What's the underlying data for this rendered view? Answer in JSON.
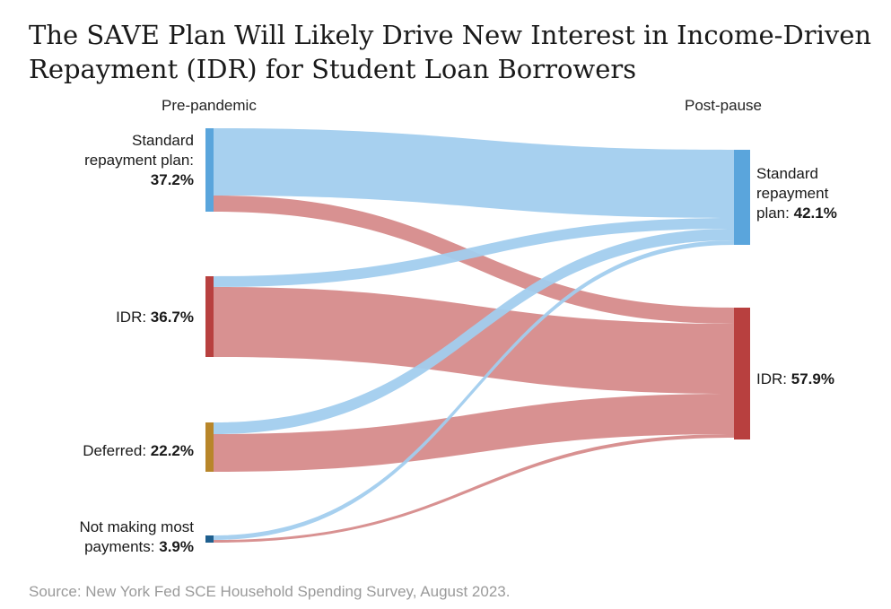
{
  "title": "The SAVE Plan Will Likely Drive New Interest in Income-Driven Repayment (IDR) for Student Loan Borrowers",
  "columns": {
    "left": "Pre-pandemic",
    "right": "Post-pause"
  },
  "left_nodes": [
    {
      "id": "standard",
      "label_lines": [
        "Standard",
        "repayment plan:"
      ],
      "pct": "37.2%",
      "value": 37.2,
      "color": "#5aa5dc"
    },
    {
      "id": "idr",
      "label_lines": [
        "IDR:"
      ],
      "pct": "36.7%",
      "value": 36.7,
      "color": "#b8403f"
    },
    {
      "id": "deferred",
      "label_lines": [
        "Deferred:"
      ],
      "pct": "22.2%",
      "value": 22.2,
      "color": "#b8862a"
    },
    {
      "id": "notpaying",
      "label_lines": [
        "Not making most",
        "payments:"
      ],
      "pct": "3.9%",
      "value": 3.9,
      "color": "#1f5f8e"
    }
  ],
  "right_nodes": [
    {
      "id": "standard",
      "label_lines": [
        "Standard",
        "repayment",
        "plan:"
      ],
      "pct": "42.1%",
      "value": 42.1,
      "color": "#5aa5dc"
    },
    {
      "id": "idr",
      "label_lines": [
        "IDR:"
      ],
      "pct": "57.9%",
      "value": 57.9,
      "color": "#b8403f"
    }
  ],
  "flow_colors": {
    "to_standard": "#a2cdee",
    "to_idr": "#d68b8b"
  },
  "source": "Source: New York Fed SCE Household Spending Survey, August 2023."
}
